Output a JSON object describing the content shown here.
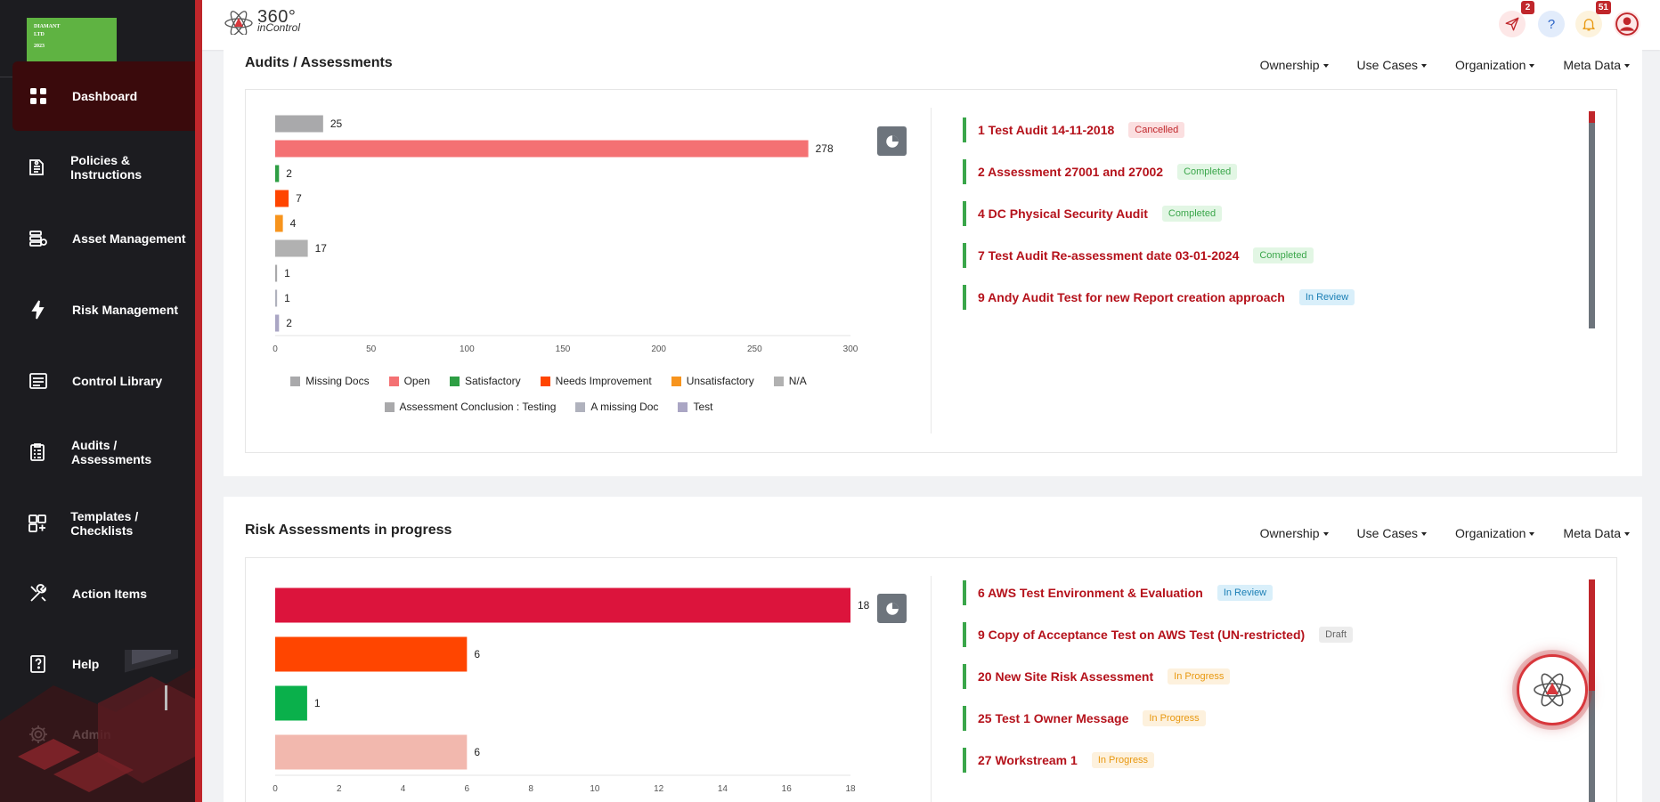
{
  "org": {
    "line1": "DIAMANT",
    "line2": "LTD",
    "line3": "2023"
  },
  "brand": {
    "title": "360°",
    "subtitle": "inControl"
  },
  "sidebar": {
    "items": [
      {
        "label": "Dashboard",
        "icon": "dashboard-icon",
        "active": true
      },
      {
        "label": "Policies & Instructions",
        "icon": "policies-icon",
        "active": false
      },
      {
        "label": "Asset Management",
        "icon": "asset-icon",
        "active": false
      },
      {
        "label": "Risk Management",
        "icon": "lightning-icon",
        "active": false
      },
      {
        "label": "Control Library",
        "icon": "control-library-icon",
        "active": false
      },
      {
        "label": "Audits / Assessments",
        "icon": "clipboard-icon",
        "active": false
      },
      {
        "label": "Templates / Checklists",
        "icon": "templates-icon",
        "active": false
      },
      {
        "label": "Action Items",
        "icon": "tools-icon",
        "active": false
      },
      {
        "label": "Help",
        "icon": "help-book-icon",
        "active": false
      },
      {
        "label": "Admin",
        "icon": "gear-icon",
        "active": false
      }
    ]
  },
  "topbar": {
    "send_badge": "2",
    "help_label": "?",
    "notifications_badge": "51"
  },
  "filters": [
    "Ownership",
    "Use Cases",
    "Organization",
    "Meta Data"
  ],
  "audits": {
    "title": "Audits / Assessments",
    "items": [
      {
        "title": "1 Test Audit 14-11-2018",
        "status": "Cancelled",
        "status_class": "cancelled"
      },
      {
        "title": "2 Assessment 27001 and 27002",
        "status": "Completed",
        "status_class": "completed"
      },
      {
        "title": "4 DC Physical Security Audit",
        "status": "Completed",
        "status_class": "completed"
      },
      {
        "title": "7 Test Audit Re-assessment date 03-01-2024",
        "status": "Completed",
        "status_class": "completed"
      },
      {
        "title": "9 Andy Audit Test for new Report creation approach",
        "status": "In Review",
        "status_class": "inreview"
      }
    ]
  },
  "risk": {
    "title": "Risk Assessments in progress",
    "items": [
      {
        "title": "6 AWS Test Environment & Evaluation",
        "status": "In Review",
        "status_class": "inreview"
      },
      {
        "title": "9 Copy of Acceptance Test on AWS Test (UN-restricted)",
        "status": "Draft",
        "status_class": "draft"
      },
      {
        "title": "20 New Site Risk Assessment",
        "status": "In Progress",
        "status_class": "inprogress"
      },
      {
        "title": "25 Test 1 Owner Message",
        "status": "In Progress",
        "status_class": "inprogress"
      },
      {
        "title": "27 Workstream 1",
        "status": "In Progress",
        "status_class": "inprogress"
      }
    ]
  },
  "chart_data": [
    {
      "type": "bar",
      "orientation": "horizontal",
      "categories": [
        "Missing Docs",
        "Open",
        "Satisfactory",
        "Needs Improvement",
        "Unsatisfactory",
        "N/A",
        "Assessment Conclusion : Testing",
        "A missing Doc",
        "Test"
      ],
      "values": [
        25,
        278,
        2,
        7,
        4,
        17,
        1,
        1,
        2
      ],
      "colors": [
        "#a9a9ab",
        "#f47173",
        "#2e9e44",
        "#ff4500",
        "#f7941d",
        "#b1b1b1",
        "#a9a9ab",
        "#b0b2bd",
        "#aaa6c4"
      ],
      "xlim": [
        0,
        300
      ],
      "xticks": [
        0,
        50,
        100,
        150,
        200,
        250,
        300
      ],
      "legend": "bottom"
    },
    {
      "type": "bar",
      "orientation": "horizontal",
      "categories": [
        "",
        "",
        "",
        ""
      ],
      "values": [
        18,
        6,
        1,
        6
      ],
      "colors": [
        "#dc143c",
        "#ff4500",
        "#0ab04b",
        "#f2b8ae"
      ],
      "xlim": [
        0,
        18
      ],
      "xticks": [
        0,
        2,
        4,
        6,
        8,
        10,
        12,
        14,
        16,
        18
      ]
    }
  ]
}
